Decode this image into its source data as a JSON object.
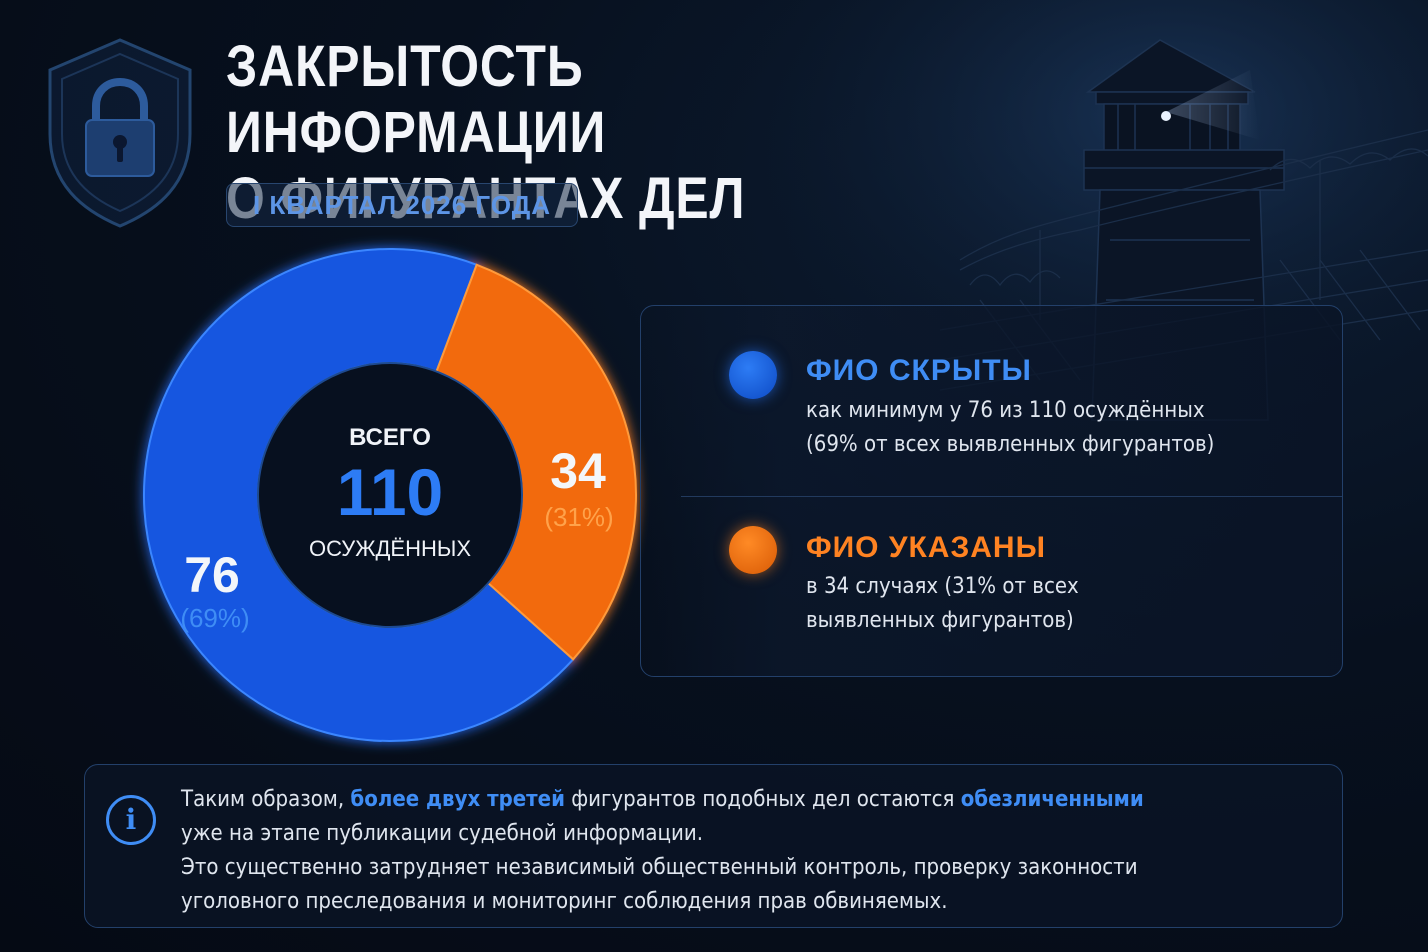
{
  "title": {
    "line1": "ЗАКРЫТОСТЬ ИНФОРМАЦИИ",
    "line2": "О ФИГУРАНТАХ ДЕЛ"
  },
  "period": "I КВАРТАЛ 2026 ГОДА",
  "chart_data": {
    "type": "pie",
    "donut": true,
    "center": {
      "top_label": "ВСЕГО",
      "total": "110",
      "bottom_label": "ОСУЖДЁННЫХ"
    },
    "slices": [
      {
        "value": 76,
        "value_label": "76",
        "percent_label": "(69%)",
        "color": "#1556e0"
      },
      {
        "value": 34,
        "value_label": "34",
        "percent_label": "(31%)",
        "color": "#f26a0c"
      }
    ],
    "legend": [
      {
        "heading": "ФИО СКРЫТЫ",
        "line1": "как минимум у 76 из 110 осуждённых",
        "line2": "(69% от всех выявленных фигурантов)",
        "color": "#3f8df5"
      },
      {
        "heading": "ФИО УКАЗАНЫ",
        "line1": "в 34 случаях (31% от всех",
        "line2": "выявленных фигурантов)",
        "color": "#ff8322"
      }
    ]
  },
  "info": {
    "icon": "info-icon",
    "glyph": "i",
    "p1_a": "Таким образом, ",
    "p1_hl1": "более двух третей",
    "p1_b": " фигурантов подобных дел остаются ",
    "p1_hl2": "обезличенными",
    "p2": "уже на этапе публикации судебной информации.",
    "p3": "Это существенно затрудняет независимый общественный контроль, проверку законности",
    "p4": "уголовного преследования и мониторинг соблюдения прав обвиняемых."
  },
  "colors": {
    "accent_blue": "#3f8df5",
    "accent_orange": "#ff8322",
    "background": "#07101e"
  },
  "icons": [
    "shield-lock-icon",
    "watchtower-illustration",
    "barbed-wire-fence-illustration",
    "info-icon"
  ]
}
